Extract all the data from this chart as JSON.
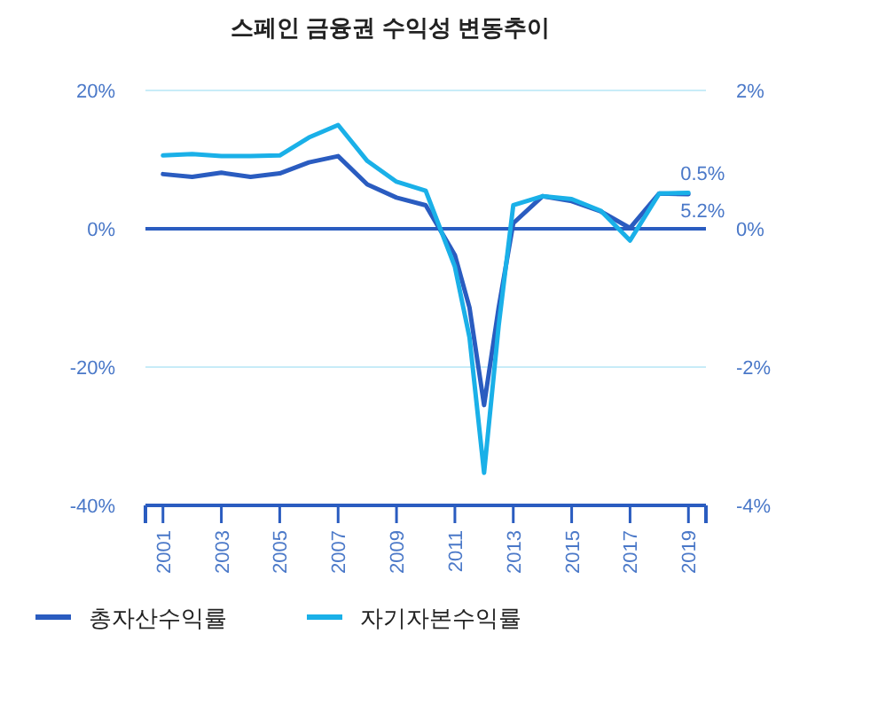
{
  "chart_data": {
    "type": "line",
    "title": "스페인 금융권 수익성 변동추이",
    "x": [
      2001,
      2002,
      2003,
      2004,
      2005,
      2006,
      2007,
      2008,
      2009,
      2010,
      2011,
      2011.5,
      2012,
      2012.5,
      2013,
      2014,
      2015,
      2016,
      2017,
      2018,
      2019
    ],
    "series": [
      {
        "name": "총자산수익률",
        "color": "#2a5cc0",
        "axis": "y2",
        "values": [
          0.79,
          0.75,
          0.81,
          0.75,
          0.8,
          0.96,
          1.05,
          0.64,
          0.45,
          0.34,
          -0.38,
          -1.14,
          -2.55,
          -1.14,
          0.08,
          0.47,
          0.4,
          0.25,
          0.01,
          0.51,
          0.5
        ]
      },
      {
        "name": "자기자본수익률",
        "color": "#1ab0e8",
        "values": [
          10.6,
          10.8,
          10.5,
          10.5,
          10.6,
          13.2,
          15.0,
          9.8,
          6.8,
          5.5,
          -5.5,
          -15.7,
          -35.3,
          -14,
          3.4,
          4.7,
          4.3,
          2.6,
          -1.7,
          5.1,
          5.2
        ]
      }
    ],
    "xlim": [
      2000.4,
      2019.6
    ],
    "xticks": [
      2001,
      2003,
      2005,
      2007,
      2009,
      2011,
      2013,
      2015,
      2017,
      2019
    ],
    "ylim": [
      -40,
      20
    ],
    "yticks": [
      {
        "value": -40,
        "label": "-40%"
      },
      {
        "value": -20,
        "label": "-20%"
      },
      {
        "value": 0,
        "label": "0%"
      },
      {
        "value": 20,
        "label": "20%"
      }
    ],
    "y2lim": [
      -4,
      2
    ],
    "y2ticks": [
      {
        "value": -4,
        "label": "-4%"
      },
      {
        "value": -2,
        "label": "-2%"
      },
      {
        "value": 0,
        "label": "0%"
      },
      {
        "value": 2,
        "label": "2%"
      }
    ],
    "ref_lines": [
      {
        "axis": "y",
        "value": 20,
        "color": "#c8ecf8"
      },
      {
        "axis": "y",
        "value": -20,
        "color": "#c8ecf8"
      },
      {
        "axis": "y",
        "value": 0,
        "color": "#2a5cc0"
      }
    ],
    "annotations": [
      {
        "text": "0.5%",
        "x": 2019,
        "y": 0.5
      },
      {
        "text": "5.2%",
        "x": 2019,
        "y": 5.2
      }
    ],
    "legend": "bottom",
    "marker": "none",
    "line_style": "solid"
  }
}
